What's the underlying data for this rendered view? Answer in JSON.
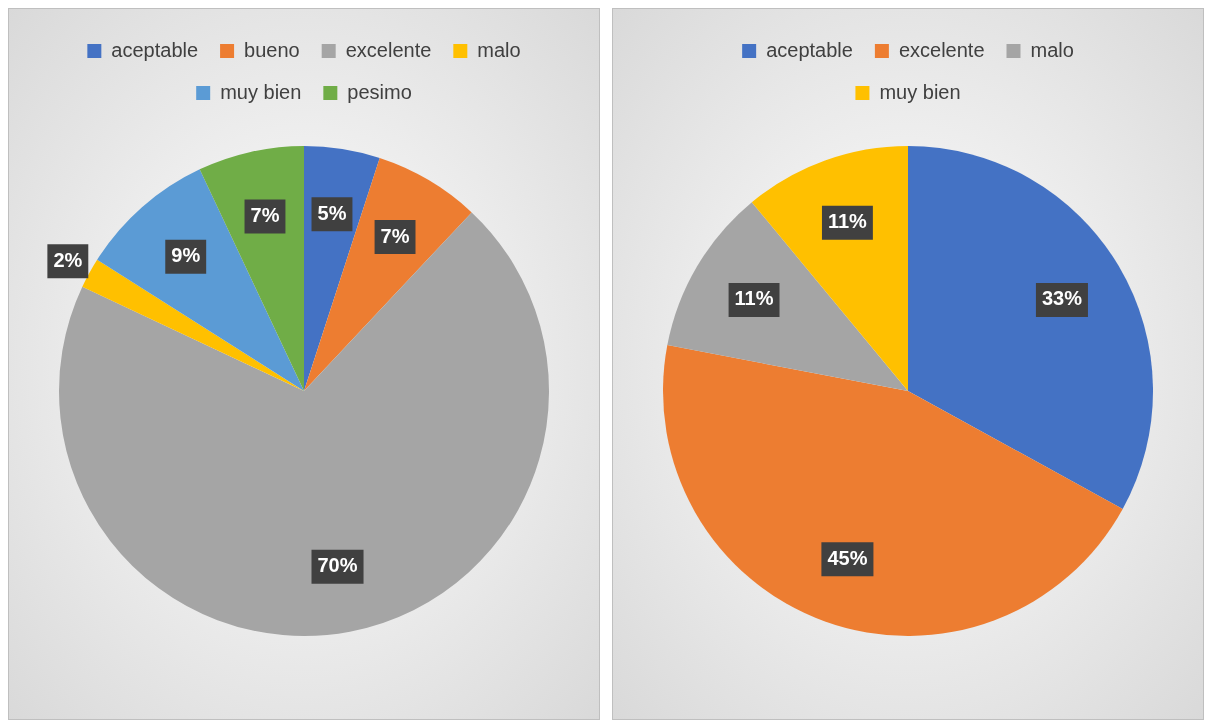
{
  "chart_data": [
    {
      "type": "pie",
      "categories": [
        "aceptable",
        "bueno",
        "excelente",
        "malo",
        "muy bien",
        "pesimo"
      ],
      "values": [
        5,
        7,
        70,
        2,
        9,
        7
      ],
      "colors": [
        "#4472c4",
        "#ed7d31",
        "#a5a5a5",
        "#ffc000",
        "#5b9bd5",
        "#70ad47"
      ],
      "value_labels": [
        "5%",
        "7%",
        "70%",
        "2%",
        "9%",
        "7%"
      ],
      "legend": "top"
    },
    {
      "type": "pie",
      "categories": [
        "aceptable",
        "excelente",
        "malo",
        "muy bien"
      ],
      "values": [
        33,
        45,
        11,
        11
      ],
      "colors": [
        "#4472c4",
        "#ed7d31",
        "#a5a5a5",
        "#ffc000"
      ],
      "value_labels": [
        "33%",
        "45%",
        "11%",
        "11%"
      ],
      "legend": "top"
    }
  ]
}
